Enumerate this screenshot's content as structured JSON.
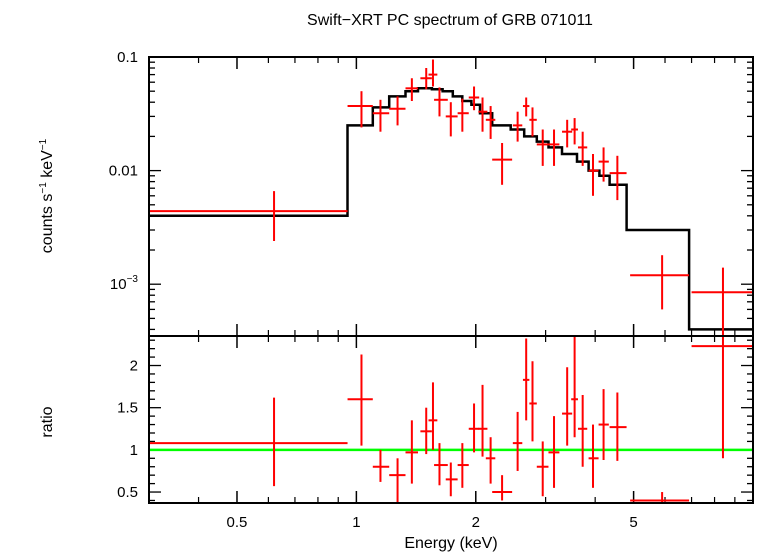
{
  "chart_data": [
    {
      "type": "scatter",
      "panel": "spectrum",
      "title": "Swift−XRT PC spectrum of GRB 071011",
      "ylabel_main": "counts s",
      "ylabel_exp1": "−1",
      "ylabel_mid": " keV",
      "ylabel_exp2": "−1",
      "xscale": "log",
      "yscale": "log",
      "xlim": [
        0.3,
        10.0
      ],
      "ylim": [
        0.00035,
        0.1
      ],
      "ytick_labels": [
        {
          "value": 0.1,
          "label": "0.1"
        },
        {
          "value": 0.01,
          "label": "0.01"
        },
        {
          "value": 0.001,
          "base": "10",
          "exp": "−3"
        }
      ],
      "data_color": "#ff0000",
      "model_color": "#000000",
      "data_points": [
        {
          "x": 0.62,
          "xlo": 0.3,
          "xhi": 0.95,
          "y": 0.0044,
          "ylo": 0.0024,
          "yhi": 0.0066
        },
        {
          "x": 1.03,
          "xlo": 0.95,
          "xhi": 1.1,
          "y": 0.037,
          "ylo": 0.024,
          "yhi": 0.05
        },
        {
          "x": 1.15,
          "xlo": 1.1,
          "xhi": 1.21,
          "y": 0.032,
          "ylo": 0.022,
          "yhi": 0.042
        },
        {
          "x": 1.27,
          "xlo": 1.21,
          "xhi": 1.33,
          "y": 0.035,
          "ylo": 0.025,
          "yhi": 0.045
        },
        {
          "x": 1.38,
          "xlo": 1.33,
          "xhi": 1.43,
          "y": 0.053,
          "ylo": 0.041,
          "yhi": 0.065
        },
        {
          "x": 1.5,
          "xlo": 1.45,
          "xhi": 1.55,
          "y": 0.065,
          "ylo": 0.052,
          "yhi": 0.08
        },
        {
          "x": 1.56,
          "xlo": 1.52,
          "xhi": 1.6,
          "y": 0.07,
          "ylo": 0.055,
          "yhi": 0.095
        },
        {
          "x": 1.62,
          "xlo": 1.57,
          "xhi": 1.7,
          "y": 0.042,
          "ylo": 0.03,
          "yhi": 0.054
        },
        {
          "x": 1.73,
          "xlo": 1.68,
          "xhi": 1.8,
          "y": 0.03,
          "ylo": 0.02,
          "yhi": 0.04
        },
        {
          "x": 1.85,
          "xlo": 1.8,
          "xhi": 1.92,
          "y": 0.032,
          "ylo": 0.022,
          "yhi": 0.043
        },
        {
          "x": 1.98,
          "xlo": 1.92,
          "xhi": 2.04,
          "y": 0.044,
          "ylo": 0.034,
          "yhi": 0.055
        },
        {
          "x": 2.08,
          "xlo": 2.03,
          "xhi": 2.14,
          "y": 0.033,
          "ylo": 0.022,
          "yhi": 0.044
        },
        {
          "x": 2.18,
          "xlo": 2.12,
          "xhi": 2.24,
          "y": 0.028,
          "ylo": 0.019,
          "yhi": 0.037
        },
        {
          "x": 2.33,
          "xlo": 2.2,
          "xhi": 2.47,
          "y": 0.0125,
          "ylo": 0.0075,
          "yhi": 0.0175
        },
        {
          "x": 2.55,
          "xlo": 2.48,
          "xhi": 2.62,
          "y": 0.025,
          "ylo": 0.018,
          "yhi": 0.033
        },
        {
          "x": 2.68,
          "xlo": 2.63,
          "xhi": 2.73,
          "y": 0.037,
          "ylo": 0.03,
          "yhi": 0.044
        },
        {
          "x": 2.78,
          "xlo": 2.73,
          "xhi": 2.85,
          "y": 0.028,
          "ylo": 0.02,
          "yhi": 0.036
        },
        {
          "x": 2.95,
          "xlo": 2.85,
          "xhi": 3.05,
          "y": 0.017,
          "ylo": 0.011,
          "yhi": 0.023
        },
        {
          "x": 3.15,
          "xlo": 3.05,
          "xhi": 3.25,
          "y": 0.017,
          "ylo": 0.011,
          "yhi": 0.023
        },
        {
          "x": 3.4,
          "xlo": 3.3,
          "xhi": 3.5,
          "y": 0.022,
          "ylo": 0.016,
          "yhi": 0.028
        },
        {
          "x": 3.55,
          "xlo": 3.48,
          "xhi": 3.62,
          "y": 0.023,
          "ylo": 0.017,
          "yhi": 0.029
        },
        {
          "x": 3.72,
          "xlo": 3.62,
          "xhi": 3.82,
          "y": 0.016,
          "ylo": 0.011,
          "yhi": 0.022
        },
        {
          "x": 3.95,
          "xlo": 3.85,
          "xhi": 4.08,
          "y": 0.01,
          "ylo": 0.006,
          "yhi": 0.014
        },
        {
          "x": 4.2,
          "xlo": 4.08,
          "xhi": 4.33,
          "y": 0.012,
          "ylo": 0.008,
          "yhi": 0.016
        },
        {
          "x": 4.55,
          "xlo": 4.35,
          "xhi": 4.8,
          "y": 0.0095,
          "ylo": 0.0055,
          "yhi": 0.0135
        },
        {
          "x": 5.9,
          "xlo": 4.9,
          "xhi": 6.9,
          "y": 0.0012,
          "ylo": 0.0006,
          "yhi": 0.0018
        },
        {
          "x": 8.4,
          "xlo": 7.0,
          "xhi": 10.0,
          "y": 0.00085,
          "ylo": 0.00035,
          "yhi": 0.0014
        }
      ],
      "model_steps": [
        {
          "xlo": 0.3,
          "xhi": 0.95,
          "y": 0.004
        },
        {
          "xlo": 0.95,
          "xhi": 1.1,
          "y": 0.025
        },
        {
          "xlo": 1.1,
          "xhi": 1.21,
          "y": 0.036
        },
        {
          "xlo": 1.21,
          "xhi": 1.33,
          "y": 0.045
        },
        {
          "xlo": 1.33,
          "xhi": 1.43,
          "y": 0.05
        },
        {
          "xlo": 1.43,
          "xhi": 1.55,
          "y": 0.053
        },
        {
          "xlo": 1.55,
          "xhi": 1.65,
          "y": 0.052
        },
        {
          "xlo": 1.65,
          "xhi": 1.75,
          "y": 0.05
        },
        {
          "xlo": 1.75,
          "xhi": 1.85,
          "y": 0.045
        },
        {
          "xlo": 1.85,
          "xhi": 1.95,
          "y": 0.041
        },
        {
          "xlo": 1.95,
          "xhi": 2.05,
          "y": 0.038
        },
        {
          "xlo": 2.05,
          "xhi": 2.2,
          "y": 0.032
        },
        {
          "xlo": 2.2,
          "xhi": 2.45,
          "y": 0.025
        },
        {
          "xlo": 2.45,
          "xhi": 2.65,
          "y": 0.023
        },
        {
          "xlo": 2.65,
          "xhi": 2.85,
          "y": 0.02
        },
        {
          "xlo": 2.85,
          "xhi": 3.05,
          "y": 0.018
        },
        {
          "xlo": 3.05,
          "xhi": 3.3,
          "y": 0.016
        },
        {
          "xlo": 3.3,
          "xhi": 3.6,
          "y": 0.014
        },
        {
          "xlo": 3.6,
          "xhi": 3.85,
          "y": 0.012
        },
        {
          "xlo": 3.85,
          "xhi": 4.1,
          "y": 0.01
        },
        {
          "xlo": 4.1,
          "xhi": 4.35,
          "y": 0.009
        },
        {
          "xlo": 4.35,
          "xhi": 4.8,
          "y": 0.0075
        },
        {
          "xlo": 4.8,
          "xhi": 6.9,
          "y": 0.003
        },
        {
          "xlo": 6.9,
          "xhi": 10.0,
          "y": 0.0004
        }
      ]
    },
    {
      "type": "scatter",
      "panel": "ratio",
      "ylabel": "ratio",
      "xlabel": "Energy (keV)",
      "xscale": "log",
      "yscale": "linear",
      "xlim": [
        0.3,
        10.0
      ],
      "ylim": [
        0.37,
        2.35
      ],
      "yticks": [
        0.5,
        1,
        1.5,
        2
      ],
      "ytick_labels": [
        "0.5",
        "1",
        "1.5",
        "2"
      ],
      "xticks": [
        0.5,
        1,
        2,
        5
      ],
      "xtick_labels": [
        "0.5",
        "1",
        "2",
        "5"
      ],
      "reference_line": 1,
      "reference_color": "#00ff00",
      "data_color": "#ff0000",
      "data_points": [
        {
          "x": 0.62,
          "xlo": 0.3,
          "xhi": 0.95,
          "y": 1.08,
          "ylo": 0.57,
          "yhi": 1.62
        },
        {
          "x": 1.03,
          "xlo": 0.95,
          "xhi": 1.1,
          "y": 1.6,
          "ylo": 1.05,
          "yhi": 2.13
        },
        {
          "x": 1.15,
          "xlo": 1.1,
          "xhi": 1.21,
          "y": 0.8,
          "ylo": 0.62,
          "yhi": 1.0
        },
        {
          "x": 1.27,
          "xlo": 1.21,
          "xhi": 1.33,
          "y": 0.7,
          "ylo": 0.38,
          "yhi": 0.9
        },
        {
          "x": 1.38,
          "xlo": 1.33,
          "xhi": 1.43,
          "y": 0.97,
          "ylo": 0.6,
          "yhi": 1.35
        },
        {
          "x": 1.5,
          "xlo": 1.45,
          "xhi": 1.55,
          "y": 1.22,
          "ylo": 0.95,
          "yhi": 1.5
        },
        {
          "x": 1.56,
          "xlo": 1.52,
          "xhi": 1.6,
          "y": 1.35,
          "ylo": 1.0,
          "yhi": 1.8
        },
        {
          "x": 1.62,
          "xlo": 1.57,
          "xhi": 1.7,
          "y": 0.82,
          "ylo": 0.58,
          "yhi": 1.08
        },
        {
          "x": 1.73,
          "xlo": 1.68,
          "xhi": 1.8,
          "y": 0.65,
          "ylo": 0.45,
          "yhi": 0.85
        },
        {
          "x": 1.85,
          "xlo": 1.8,
          "xhi": 1.92,
          "y": 0.82,
          "ylo": 0.55,
          "yhi": 1.08
        },
        {
          "x": 1.98,
          "xlo": 1.92,
          "xhi": 2.04,
          "y": 1.25,
          "ylo": 0.97,
          "yhi": 1.55
        },
        {
          "x": 2.08,
          "xlo": 2.03,
          "xhi": 2.14,
          "y": 1.25,
          "ylo": 0.92,
          "yhi": 1.77
        },
        {
          "x": 2.18,
          "xlo": 2.12,
          "xhi": 2.24,
          "y": 0.9,
          "ylo": 0.6,
          "yhi": 1.15
        },
        {
          "x": 2.33,
          "xlo": 2.2,
          "xhi": 2.47,
          "y": 0.5,
          "ylo": 0.4,
          "yhi": 0.7
        },
        {
          "x": 2.55,
          "xlo": 2.48,
          "xhi": 2.62,
          "y": 1.08,
          "ylo": 0.75,
          "yhi": 1.45
        },
        {
          "x": 2.68,
          "xlo": 2.63,
          "xhi": 2.73,
          "y": 1.83,
          "ylo": 1.35,
          "yhi": 2.32
        },
        {
          "x": 2.78,
          "xlo": 2.73,
          "xhi": 2.85,
          "y": 1.55,
          "ylo": 1.1,
          "yhi": 2.05
        },
        {
          "x": 2.95,
          "xlo": 2.85,
          "xhi": 3.05,
          "y": 0.8,
          "ylo": 0.45,
          "yhi": 1.1
        },
        {
          "x": 3.15,
          "xlo": 3.05,
          "xhi": 3.25,
          "y": 0.97,
          "ylo": 0.55,
          "yhi": 1.4
        },
        {
          "x": 3.4,
          "xlo": 3.3,
          "xhi": 3.5,
          "y": 1.43,
          "ylo": 1.05,
          "yhi": 1.98
        },
        {
          "x": 3.55,
          "xlo": 3.48,
          "xhi": 3.62,
          "y": 1.6,
          "ylo": 1.15,
          "yhi": 2.35
        },
        {
          "x": 3.72,
          "xlo": 3.62,
          "xhi": 3.82,
          "y": 1.25,
          "ylo": 0.8,
          "yhi": 1.65
        },
        {
          "x": 3.95,
          "xlo": 3.85,
          "xhi": 4.08,
          "y": 0.9,
          "ylo": 0.55,
          "yhi": 1.3
        },
        {
          "x": 4.2,
          "xlo": 4.08,
          "xhi": 4.33,
          "y": 1.3,
          "ylo": 0.88,
          "yhi": 1.72
        },
        {
          "x": 4.55,
          "xlo": 4.35,
          "xhi": 4.8,
          "y": 1.27,
          "ylo": 0.87,
          "yhi": 1.68
        },
        {
          "x": 5.9,
          "xlo": 4.9,
          "xhi": 6.9,
          "y": 0.4,
          "ylo": 0.37,
          "yhi": 0.5
        },
        {
          "x": 8.4,
          "xlo": 7.0,
          "xhi": 10.0,
          "y": 2.23,
          "ylo": 0.9,
          "yhi": 2.35
        }
      ]
    }
  ]
}
